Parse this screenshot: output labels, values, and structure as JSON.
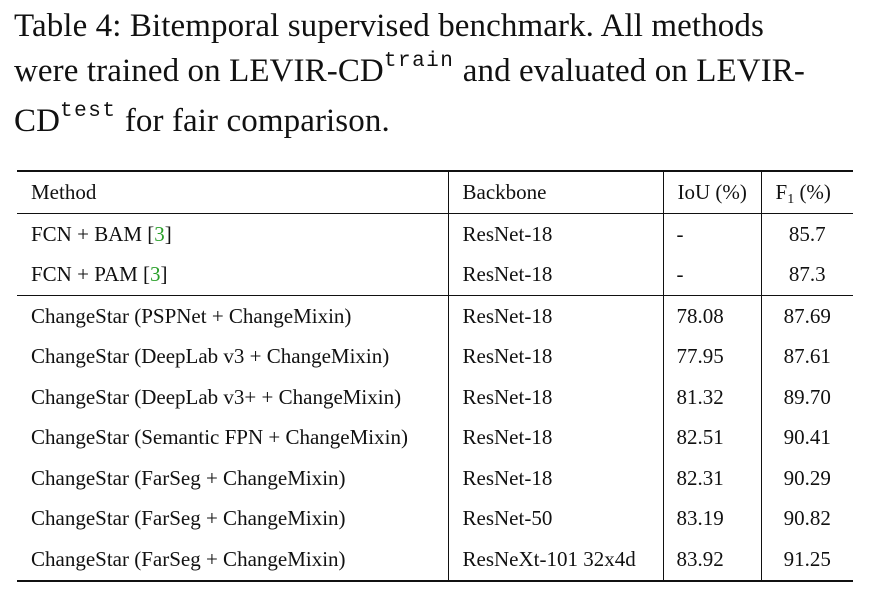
{
  "caption": {
    "line1": "Table 4: Bitemporal supervised benchmark. All methods",
    "line2_pre": "were trained on LEVIR-CD",
    "line2_sup": "train",
    "line2_post": " and evaluated on LEVIR-",
    "line3_pre": "CD",
    "line3_sup": "test",
    "line3_post": " for fair comparison."
  },
  "table": {
    "headers": {
      "method": "Method",
      "backbone": "Backbone",
      "iou": "IoU (%)",
      "f1_main": "F",
      "f1_sub": "1",
      "f1_unit": " (%)"
    },
    "rows": [
      {
        "method": "FCN + BAM [",
        "cite": "3",
        "method_end": "]",
        "backbone": "ResNet-18",
        "iou": "-",
        "f1": "85.7"
      },
      {
        "method": "FCN + PAM [",
        "cite": "3",
        "method_end": "]",
        "backbone": "ResNet-18",
        "iou": "-",
        "f1": "87.3"
      },
      {
        "method": "ChangeStar (PSPNet + ChangeMixin)",
        "backbone": "ResNet-18",
        "iou": "78.08",
        "f1": "87.69"
      },
      {
        "method": "ChangeStar (DeepLab v3 + ChangeMixin)",
        "backbone": "ResNet-18",
        "iou": "77.95",
        "f1": "87.61"
      },
      {
        "method": "ChangeStar (DeepLab v3+ + ChangeMixin)",
        "backbone": "ResNet-18",
        "iou": "81.32",
        "f1": "89.70"
      },
      {
        "method": "ChangeStar (Semantic FPN + ChangeMixin)",
        "backbone": "ResNet-18",
        "iou": "82.51",
        "f1": "90.41"
      },
      {
        "method": "ChangeStar (FarSeg + ChangeMixin)",
        "backbone": "ResNet-18",
        "iou": "82.31",
        "f1": "90.29"
      },
      {
        "method": "ChangeStar (FarSeg + ChangeMixin)",
        "backbone": "ResNet-50",
        "iou": "83.19",
        "f1": "90.82"
      },
      {
        "method": "ChangeStar (FarSeg + ChangeMixin)",
        "backbone": "ResNeXt-101 32x4d",
        "iou": "83.92",
        "f1": "91.25"
      }
    ]
  },
  "colors": {
    "citation": "#2aa02a",
    "text": "#111111"
  }
}
